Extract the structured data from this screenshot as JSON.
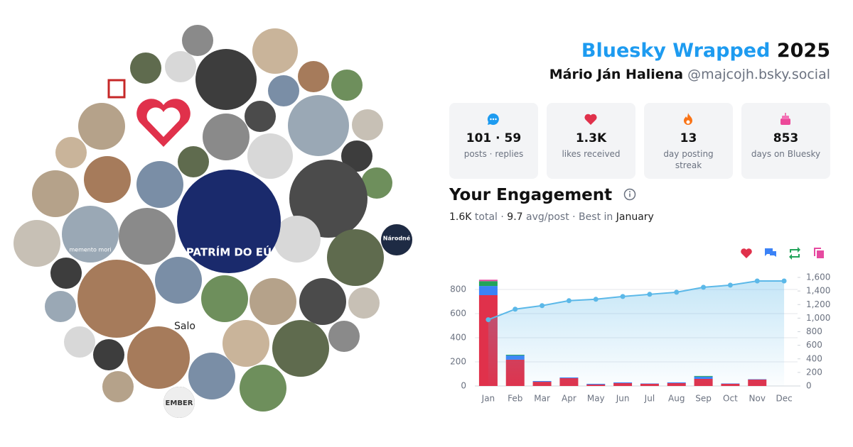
{
  "collage": {
    "center_label": "PATRÍM DO EÚ",
    "skull_label": "memento mori",
    "broken_image": "Salo",
    "ember_label": "EMBER",
    "news_label": "Národné"
  },
  "header": {
    "title": "Bluesky Wrapped",
    "year": "2025",
    "name": "Mário Ján Haliena",
    "handle": "@majcojh.bsky.social"
  },
  "stats": [
    {
      "value": "101 · 59",
      "label": "posts · replies"
    },
    {
      "value": "1.3K",
      "label": "likes received"
    },
    {
      "value": "13",
      "label": "day posting streak"
    },
    {
      "value": "853",
      "label": "days on Bluesky"
    }
  ],
  "engagement": {
    "title": "Your Engagement",
    "total": "1.6K",
    "total_label": "total ·",
    "avg": "9.7",
    "avg_label": "avg/post · Best in",
    "best": "January"
  },
  "chart_data": {
    "type": "bar",
    "categories": [
      "Jan",
      "Feb",
      "Mar",
      "Apr",
      "May",
      "Jun",
      "Jul",
      "Aug",
      "Sep",
      "Oct",
      "Nov",
      "Dec"
    ],
    "series": [
      {
        "color": "#e0314b",
        "values": [
          753,
          218,
          35,
          65,
          12,
          24,
          18,
          24,
          59,
          18,
          53,
          0
        ]
      },
      {
        "color": "#3b82f6",
        "values": [
          76,
          35,
          6,
          6,
          6,
          6,
          3,
          6,
          18,
          3,
          3,
          0
        ]
      },
      {
        "color": "#22a35a",
        "values": [
          40,
          6,
          0,
          0,
          0,
          0,
          0,
          0,
          6,
          0,
          0,
          0
        ]
      },
      {
        "color": "#e64aa0",
        "values": [
          12,
          0,
          0,
          0,
          0,
          0,
          0,
          0,
          0,
          0,
          0,
          0
        ]
      },
      {
        "color": "#5bb8e8",
        "axis": "y2",
        "values": [
          977,
          1132,
          1184,
          1257,
          1278,
          1319,
          1351,
          1382,
          1455,
          1486,
          1548,
          1548
        ]
      }
    ],
    "ylim": [
      0,
      900
    ],
    "yticks": [
      0,
      200,
      400,
      600,
      800
    ],
    "y2lim": [
      0,
      1600
    ],
    "y2ticks": [
      0,
      200,
      400,
      600,
      800,
      {
        "value": 1000,
        "label": "1,000"
      },
      {
        "value": 1200,
        "label": "1,200"
      },
      {
        "value": 1400,
        "label": "1,400"
      },
      {
        "value": 1600,
        "label": "1,600"
      }
    ],
    "grid": true
  }
}
